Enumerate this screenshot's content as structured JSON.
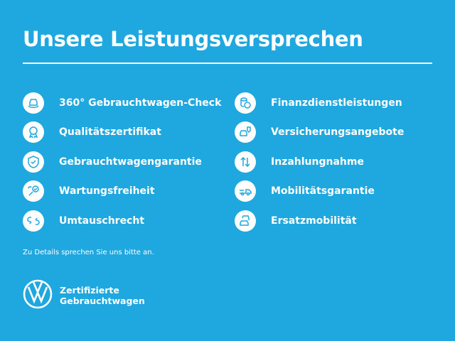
{
  "title": "Unsere Leistungsversprechen",
  "left_items": [
    {
      "label": "360° Gebrauchtwagen-Check",
      "icon": "car-check-icon"
    },
    {
      "label": "Qualitätszertifikat",
      "icon": "award-icon"
    },
    {
      "label": "Gebrauchtwagengarantie",
      "icon": "shield-check-icon"
    },
    {
      "label": "Wartungsfreiheit",
      "icon": "wrench-check-icon"
    },
    {
      "label": "Umtauschrecht",
      "icon": "exchange-icon"
    }
  ],
  "right_items": [
    {
      "label": "Finanzdienstleistungen",
      "icon": "coins-icon"
    },
    {
      "label": "Versicherungsangebote",
      "icon": "car-insurance-icon"
    },
    {
      "label": "Inzahlungnahme",
      "icon": "arrows-up-down-icon"
    },
    {
      "label": "Mobilitätsgarantie",
      "icon": "tow-truck-icon"
    },
    {
      "label": "Ersatzmobilität",
      "icon": "cars-icon"
    }
  ],
  "note": "Zu Details sprechen Sie uns bitte an.",
  "brand": {
    "line1": "Zertifizierte",
    "line2": "Gebrauchtwagen"
  },
  "colors": {
    "background": "#1fa7df",
    "foreground": "#ffffff"
  }
}
